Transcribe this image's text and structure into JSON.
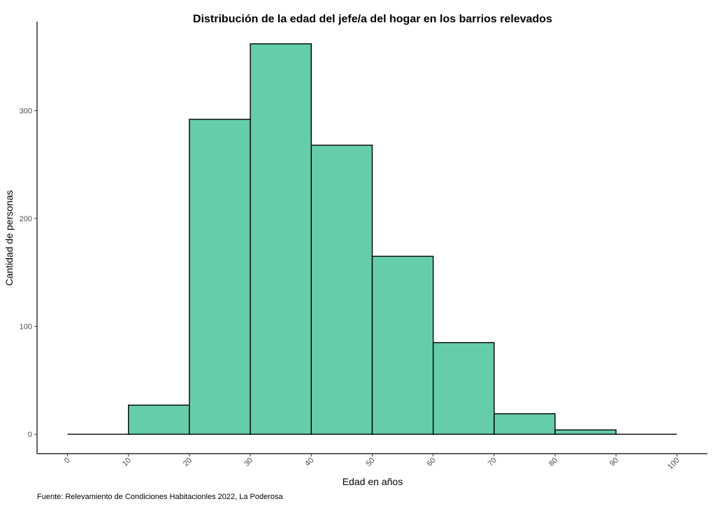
{
  "chart_data": {
    "type": "bar",
    "title": "Distribución de la edad del jefe/a del hogar en los barrios relevados",
    "xlabel": "Edad en años",
    "ylabel": "Cantidad de personas",
    "caption": "Fuente: Relevamiento de Condiciones Habitacionles 2022, La Poderosa",
    "xlim": [
      -5,
      105
    ],
    "ylim": [
      -18,
      380
    ],
    "x_ticks": [
      "0",
      "10",
      "20",
      "30",
      "40",
      "50",
      "60",
      "70",
      "80",
      "90",
      "100"
    ],
    "y_ticks": [
      "0",
      "100",
      "200",
      "300"
    ],
    "bins": [
      {
        "from": 0,
        "to": 10,
        "count": 0
      },
      {
        "from": 10,
        "to": 20,
        "count": 27
      },
      {
        "from": 20,
        "to": 30,
        "count": 292
      },
      {
        "from": 30,
        "to": 40,
        "count": 362
      },
      {
        "from": 40,
        "to": 50,
        "count": 268
      },
      {
        "from": 50,
        "to": 60,
        "count": 165
      },
      {
        "from": 60,
        "to": 70,
        "count": 85
      },
      {
        "from": 70,
        "to": 80,
        "count": 19
      },
      {
        "from": 80,
        "to": 90,
        "count": 4
      },
      {
        "from": 90,
        "to": 100,
        "count": 0
      }
    ],
    "bar_color": "#66cdaa",
    "bar_outline": "#000000",
    "grid": false
  }
}
